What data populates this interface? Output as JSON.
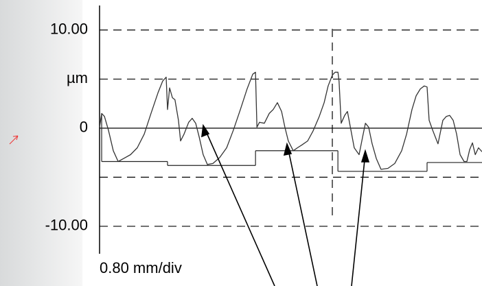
{
  "chart_data": {
    "type": "line",
    "x_label": "0.80 mm/div",
    "x": [
      0,
      0.009,
      0.021,
      0.038,
      0.059,
      0.08,
      0.103,
      0.133,
      0.162,
      0.192,
      0.221,
      0.251,
      0.271,
      0.286,
      0.292,
      0.301,
      0.313,
      0.324,
      0.339,
      0.348,
      0.363,
      0.383,
      0.398,
      0.413,
      0.428,
      0.445,
      0.463,
      0.487,
      0.516,
      0.546,
      0.575,
      0.605,
      0.634,
      0.658,
      0.67,
      0.676,
      0.687,
      0.708,
      0.729,
      0.746,
      0.764,
      0.782,
      0.796,
      0.811,
      0.832,
      0.85,
      0.87,
      0.894,
      0.917,
      0.944,
      0.965,
      0.982,
      1.0,
      1.012,
      1.024,
      1.029,
      1.038,
      1.053,
      1.065,
      1.08,
      1.094,
      1.115,
      1.13,
      1.142,
      1.156,
      1.171,
      1.189,
      1.209,
      1.239,
      1.268,
      1.298,
      1.319,
      1.342,
      1.36,
      1.378,
      1.395,
      1.407,
      1.416,
      1.431,
      1.454,
      1.475,
      1.49,
      1.504,
      1.519,
      1.534,
      1.549,
      1.566,
      1.578,
      1.59,
      1.602,
      1.614,
      1.628,
      1.643
    ],
    "values": [
      0.1,
      1.5,
      1.2,
      -0.2,
      -2.3,
      -3.4,
      -3.1,
      -2.7,
      -2.0,
      -0.6,
      1.5,
      3.6,
      4.8,
      5.2,
      1.9,
      4.1,
      3.1,
      2.9,
      0.8,
      -1.3,
      -0.6,
      0.6,
      1.0,
      0.5,
      -0.9,
      -2.7,
      -3.7,
      -3.6,
      -3.0,
      -2.0,
      -0.2,
      1.9,
      4.0,
      5.5,
      5.7,
      0.1,
      0.6,
      0.5,
      1.5,
      1.9,
      2.6,
      1.7,
      0.1,
      -1.3,
      -2.3,
      -2.0,
      -1.7,
      -1.3,
      -0.3,
      1.2,
      2.6,
      4.3,
      5.4,
      5.7,
      5.7,
      4.8,
      0.5,
      1.3,
      1.7,
      -0.2,
      -2.0,
      -2.7,
      -0.9,
      0.5,
      0.1,
      -1.6,
      -3.1,
      -4.2,
      -4.1,
      -3.6,
      -2.3,
      -0.6,
      1.9,
      3.3,
      4.0,
      4.3,
      4.2,
      0.8,
      -0.2,
      -1.6,
      0.8,
      1.2,
      1.3,
      0.8,
      -0.6,
      -2.7,
      -3.4,
      -3.4,
      -2.2,
      -1.5,
      -2.7,
      -2.0,
      -2.4
    ],
    "color": "#333333",
    "mean_segments": [
      {
        "x": [
          0.009,
          0.292
        ],
        "value": -3.4
      },
      {
        "x": [
          0.292,
          0.67
        ],
        "value": -3.8
      },
      {
        "x": [
          0.67,
          1.024
        ],
        "value": -2.3
      },
      {
        "x": [
          1.024,
          1.407
        ],
        "value": -4.4
      },
      {
        "x": [
          1.407,
          1.643
        ],
        "value": -3.5
      }
    ],
    "xlim": [
      0,
      1.643
    ],
    "vlines": [
      1
    ],
    "ylim": [
      -12.8,
      12.5
    ],
    "yticks": [
      {
        "value": 10,
        "label": "10.00"
      },
      {
        "value": 5,
        "label": "µm"
      },
      0,
      {
        "value": -5,
        "label": null
      },
      {
        "value": -10,
        "label": "-10.00"
      }
    ],
    "grid": true
  }
}
